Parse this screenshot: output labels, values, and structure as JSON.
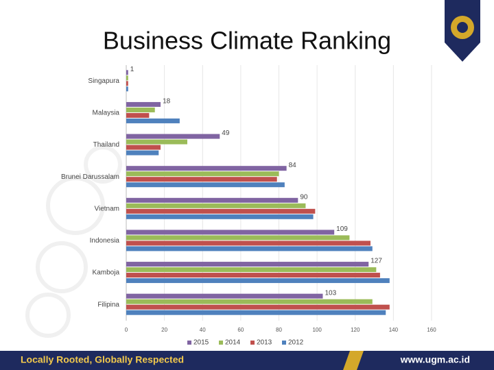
{
  "chart_data": {
    "type": "bar",
    "orientation": "horizontal",
    "title": "Business Climate Ranking",
    "categories": [
      "Singapura",
      "Malaysia",
      "Thailand",
      "Brunei Darussalam",
      "Vietnam",
      "Indonesia",
      "Kamboja",
      "Filipina"
    ],
    "series": [
      {
        "name": "2015",
        "color": "#8064a2",
        "values": [
          1,
          18,
          49,
          84,
          90,
          109,
          127,
          103
        ]
      },
      {
        "name": "2014",
        "color": "#9bbb59",
        "values": [
          1,
          15,
          32,
          80,
          94,
          117,
          131,
          129
        ]
      },
      {
        "name": "2013",
        "color": "#c0504d",
        "values": [
          1,
          12,
          18,
          79,
          99,
          128,
          133,
          138
        ]
      },
      {
        "name": "2012",
        "color": "#4f81bd",
        "values": [
          1,
          28,
          17,
          83,
          98,
          129,
          138,
          136
        ]
      }
    ],
    "labeled_series": 0,
    "xlim": [
      0,
      160
    ],
    "xticks": [
      0,
      20,
      40,
      60,
      80,
      100,
      120,
      140,
      160
    ],
    "grid": true,
    "legend": "bottom"
  },
  "slide": {
    "tagline": "Locally Rooted, Globally Respected",
    "url": "www.ugm.ac.id"
  }
}
